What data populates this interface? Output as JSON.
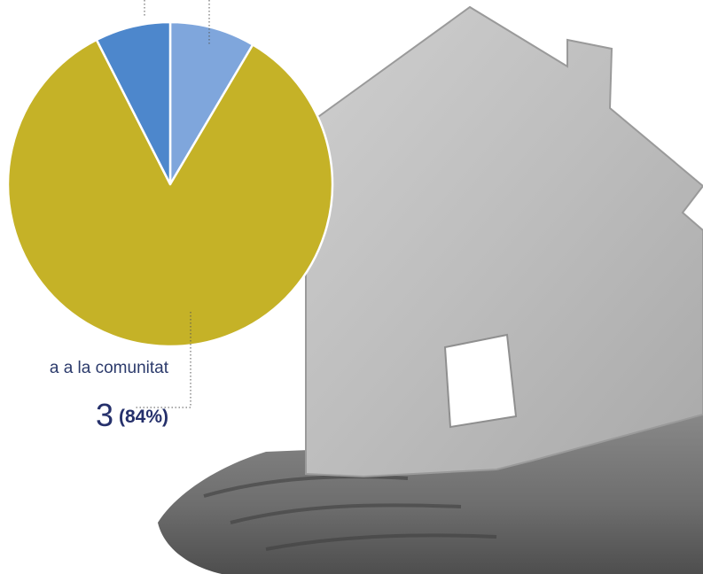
{
  "chart_data": {
    "type": "pie",
    "title": "",
    "slices": [
      {
        "label": "",
        "percent": 8.5,
        "color": "#7fa6dc"
      },
      {
        "label": "a a la comunitat",
        "percent": 84,
        "color": "#c5b227"
      },
      {
        "label": "",
        "percent": 7.5,
        "color": "#4d87cc"
      }
    ]
  },
  "callout": {
    "label": "a a la comunitat",
    "value_fragment": "3",
    "percent_text": "(84%)"
  },
  "colors": {
    "callout_text": "#25306b",
    "leader_line": "#555555",
    "slice_border": "#ffffff"
  },
  "illustration": {
    "subject": "house-in-hand-photo"
  }
}
